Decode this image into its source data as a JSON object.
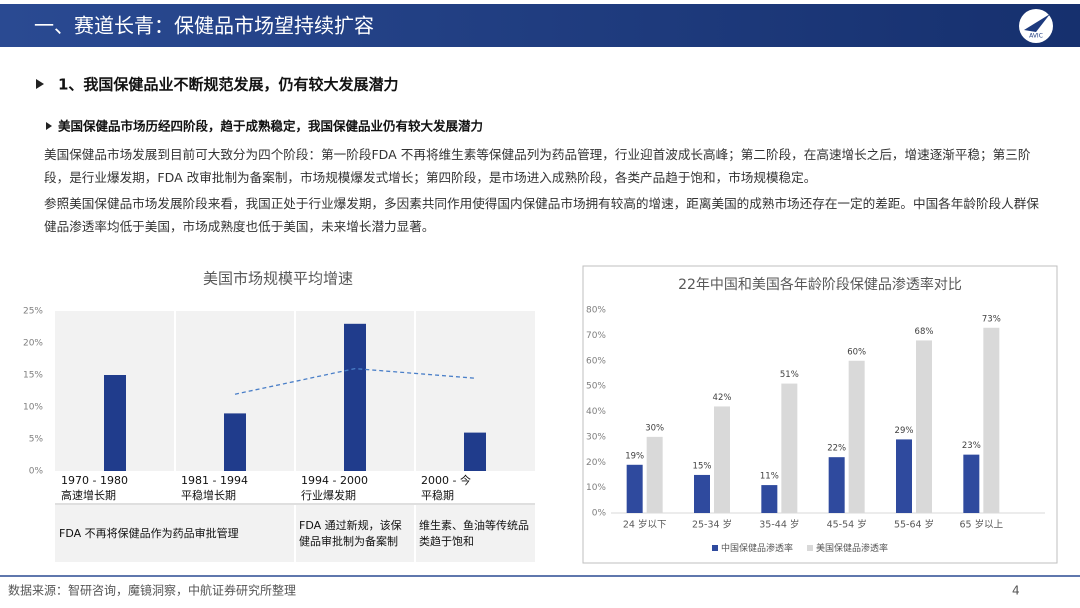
{
  "header": {
    "title": "一、赛道长青：保健品市场望持续扩容",
    "logo_text": "AVIC"
  },
  "section": {
    "heading": "1、我国保健品业不断规范发展，仍有较大发展潜力",
    "subheading": "美国保健品市场历经四阶段，趋于成熟稳定，我国保健品业仍有较大发展潜力",
    "paragraphs": [
      "美国保健品市场发展到目前可大致分为四个阶段：第一阶段FDA 不再将维生素等保健品列为药品管理，行业迎首波成长高峰；第二阶段，在高速增长之后，增速逐渐平稳；第三阶段，是行业爆发期，FDA 改审批制为备案制，市场规模爆发式增长；第四阶段，是市场进入成熟阶段，各类产品趋于饱和，市场规模稳定。",
      "参照美国保健品市场发展阶段来看，我国正处于行业爆发期，多因素共同作用使得国内保健品市场拥有较高的增速，距离美国的成熟市场还存在一定的差距。中国各年龄阶段人群保健品渗透率均低于美国，市场成熟度也低于美国，未来增长潜力显著。"
    ]
  },
  "footer": {
    "source": "数据来源：智研咨询，魔镜洞察，中航证券研究所整理",
    "page": "4"
  },
  "chart_data": [
    {
      "type": "bar",
      "title": "美国市场规模平均增速",
      "categories": [
        "1970 - 1980",
        "1981 - 1994",
        "1994 - 2000",
        "2000 - 今"
      ],
      "phases": [
        "高速增长期",
        "平稳增长期",
        "行业爆发期",
        "平稳期"
      ],
      "values": [
        15,
        9,
        23,
        6
      ],
      "color": "#203c8c",
      "line_values": [
        null,
        12,
        16,
        14.5
      ],
      "line_color": "#4a7fc8",
      "notes": [
        "FDA 不再将保健品作为药品审批管理",
        "FDA 通过新规，该保健品审批制为备案制",
        "维生素、鱼油等传统品类趋于饱和"
      ],
      "ylim": [
        0,
        25
      ],
      "yticks": [
        {
          "value": 0,
          "label": "0%"
        },
        {
          "value": 5,
          "label": "5%"
        },
        {
          "value": 10,
          "label": "10%"
        },
        {
          "value": 15,
          "label": "15%"
        },
        {
          "value": 20,
          "label": "20%"
        },
        {
          "value": 25,
          "label": "25%"
        }
      ]
    },
    {
      "type": "grouped_bar",
      "title": "22年中国和美国各年龄阶段保健品渗透率对比",
      "categories": [
        "24 岁以下",
        "25-34 岁",
        "35-44 岁",
        "45-54 岁",
        "55-64 岁",
        "65 岁以上"
      ],
      "series": [
        {
          "name": "中国保健品渗透率",
          "color": "#2f4a9e",
          "values": [
            19,
            15,
            11,
            22,
            29,
            23
          ],
          "value_labels": [
            "19%",
            "15%",
            "11%",
            "22%",
            "29%",
            "23%"
          ]
        },
        {
          "name": "美国保健品渗透率",
          "color": "#d9d9d9",
          "values": [
            30,
            42,
            51,
            60,
            68,
            73
          ],
          "value_labels": [
            "30%",
            "42%",
            "51%",
            "60%",
            "68%",
            "73%"
          ]
        }
      ],
      "ylim": [
        0,
        80
      ],
      "yticks": [
        {
          "value": 0,
          "label": "0%"
        },
        {
          "value": 10,
          "label": "10%"
        },
        {
          "value": 20,
          "label": "20%"
        },
        {
          "value": 30,
          "label": "30%"
        },
        {
          "value": 40,
          "label": "40%"
        },
        {
          "value": 50,
          "label": "50%"
        },
        {
          "value": 60,
          "label": "60%"
        },
        {
          "value": 70,
          "label": "70%"
        },
        {
          "value": 80,
          "label": "80%"
        }
      ],
      "legend": "bottom"
    }
  ]
}
